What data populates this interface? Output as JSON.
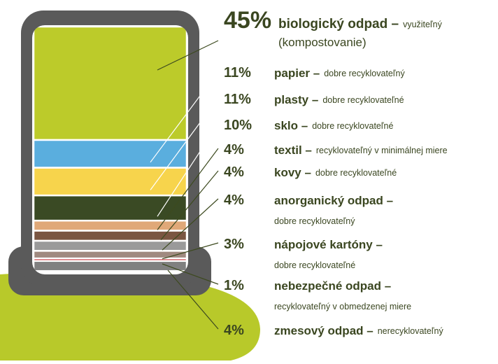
{
  "chart_data": {
    "type": "stacked-bin",
    "categories": [
      "biologický odpad –",
      "papier –",
      "plasty –",
      "sklo –",
      "textil –",
      "kovy –",
      "anorganický odpad –",
      "nápojové kartóny –",
      "nebezpečné odpad –",
      "zmesový odpad –"
    ],
    "descriptions": [
      [
        "využiteľný",
        "(kompostovanie)"
      ],
      [
        "dobre recyklovateľný"
      ],
      [
        "dobre recyklovateľné"
      ],
      [
        "dobre recyklovateľné"
      ],
      [
        "recyklovateľný v minimálnej miere"
      ],
      [
        "dobre recyklovateľné"
      ],
      [
        "dobre recyklovateľný"
      ],
      [
        "dobre recyklovateľné"
      ],
      [
        "recyklovateľný v obmedzenej miere"
      ],
      [
        "nerecyklovateľný"
      ]
    ],
    "values": [
      45,
      11,
      11,
      10,
      4,
      4,
      4,
      3,
      1,
      4
    ],
    "value_labels": [
      "45%",
      "11%",
      "11%",
      "10%",
      "4%",
      "4%",
      "4%",
      "3%",
      "1%",
      "4%"
    ],
    "colors": [
      "#bccb2a",
      "#5aaede",
      "#f7d44c",
      "#3a4a24",
      "#e0a878",
      "#7a5642",
      "#9a9a9a",
      "#a08a80",
      "#c0272d",
      "#808080"
    ]
  }
}
